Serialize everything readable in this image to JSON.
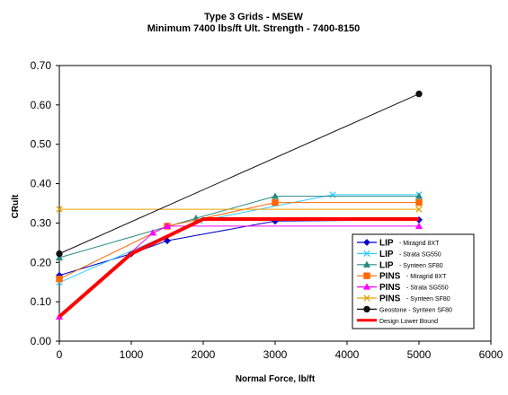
{
  "chart_data": {
    "type": "line",
    "title": "Type 3 Grids - MSEW",
    "subtitle": "Minimum 7400 lbs/ft Ult. Strength - 7400-8150",
    "xlabel": "Normal Force, lb/ft",
    "ylabel": "CRult",
    "xlim": [
      0,
      6000
    ],
    "ylim": [
      0,
      0.7
    ],
    "x_ticks": [
      "0",
      "1000",
      "2000",
      "3000",
      "4000",
      "5000",
      "6000"
    ],
    "y_ticks": [
      "0.00",
      "0.10",
      "0.20",
      "0.30",
      "0.40",
      "0.50",
      "0.60",
      "0.70"
    ],
    "grid": false,
    "legend_position": "bottom-right",
    "series": [
      {
        "label_main": "LIP",
        "label_sub": "- Miragrid 8XT",
        "color": "#0000cc",
        "marker": "diamond",
        "width": 1,
        "points": [
          [
            0,
            0.167
          ],
          [
            1000,
            0.222
          ],
          [
            1500,
            0.255
          ],
          [
            3000,
            0.305
          ],
          [
            5000,
            0.308
          ]
        ]
      },
      {
        "label_main": "LIP",
        "label_sub": "- Strata SG550",
        "color": "#33ccff",
        "marker": "x",
        "width": 1,
        "points": [
          [
            0,
            0.149
          ],
          [
            1950,
            0.305
          ],
          [
            3800,
            0.372
          ],
          [
            5000,
            0.372
          ]
        ]
      },
      {
        "label_main": "LIP",
        "label_sub": "- Synteen SF80",
        "color": "#2a8a80",
        "marker": "triangle",
        "width": 1,
        "points": [
          [
            0,
            0.212
          ],
          [
            1900,
            0.312
          ],
          [
            3000,
            0.368
          ],
          [
            5000,
            0.368
          ]
        ]
      },
      {
        "label_main": "PINS",
        "label_sub": "- Miragrid 8XT",
        "color": "#ff6600",
        "marker": "square",
        "width": 1,
        "points": [
          [
            0,
            0.158
          ],
          [
            1500,
            0.292
          ],
          [
            3000,
            0.352
          ],
          [
            5000,
            0.352
          ]
        ]
      },
      {
        "label_main": "PINS",
        "label_sub": "- Strata SG550",
        "color": "#ff00ff",
        "marker": "triangle",
        "width": 1,
        "points": [
          [
            0,
            0.062
          ],
          [
            1300,
            0.275
          ],
          [
            1500,
            0.292
          ],
          [
            5000,
            0.292
          ]
        ]
      },
      {
        "label_main": "PINS",
        "label_sub": "- Synteen SF80",
        "color": "#e6a000",
        "marker": "x",
        "width": 1,
        "points": [
          [
            0,
            0.335
          ],
          [
            5000,
            0.335
          ]
        ]
      },
      {
        "label_main": "",
        "label_sub": "Geostone - Synteen SF80",
        "color": "#111111",
        "marker": "circle",
        "width": 1,
        "points": [
          [
            0,
            0.222
          ],
          [
            5000,
            0.628
          ]
        ]
      },
      {
        "label_main": "",
        "label_sub": "Design Lower Bound",
        "color": "#ff0000",
        "marker": "none",
        "width": 4,
        "points": [
          [
            0,
            0.062
          ],
          [
            1000,
            0.222
          ],
          [
            2000,
            0.31
          ],
          [
            3000,
            0.31
          ],
          [
            5000,
            0.31
          ]
        ]
      }
    ]
  }
}
